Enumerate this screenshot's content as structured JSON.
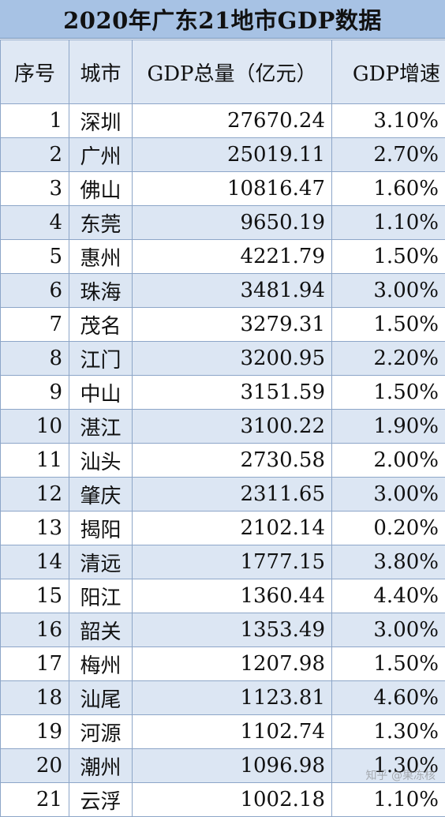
{
  "title": "2020年广东21地市GDP数据",
  "headers": {
    "rank": "序号",
    "city": "城市",
    "gdp": "GDP总量（亿元）",
    "growth": "GDP增速"
  },
  "rows": [
    {
      "rank": "1",
      "city": "深圳",
      "gdp": "27670.24",
      "growth": "3.10%"
    },
    {
      "rank": "2",
      "city": "广州",
      "gdp": "25019.11",
      "growth": "2.70%"
    },
    {
      "rank": "3",
      "city": "佛山",
      "gdp": "10816.47",
      "growth": "1.60%"
    },
    {
      "rank": "4",
      "city": "东莞",
      "gdp": "9650.19",
      "growth": "1.10%"
    },
    {
      "rank": "5",
      "city": "惠州",
      "gdp": "4221.79",
      "growth": "1.50%"
    },
    {
      "rank": "6",
      "city": "珠海",
      "gdp": "3481.94",
      "growth": "3.00%"
    },
    {
      "rank": "7",
      "city": "茂名",
      "gdp": "3279.31",
      "growth": "1.50%"
    },
    {
      "rank": "8",
      "city": "江门",
      "gdp": "3200.95",
      "growth": "2.20%"
    },
    {
      "rank": "9",
      "city": "中山",
      "gdp": "3151.59",
      "growth": "1.50%"
    },
    {
      "rank": "10",
      "city": "湛江",
      "gdp": "3100.22",
      "growth": "1.90%"
    },
    {
      "rank": "11",
      "city": "汕头",
      "gdp": "2730.58",
      "growth": "2.00%"
    },
    {
      "rank": "12",
      "city": "肇庆",
      "gdp": "2311.65",
      "growth": "3.00%"
    },
    {
      "rank": "13",
      "city": "揭阳",
      "gdp": "2102.14",
      "growth": "0.20%"
    },
    {
      "rank": "14",
      "city": "清远",
      "gdp": "1777.15",
      "growth": "3.80%"
    },
    {
      "rank": "15",
      "city": "阳江",
      "gdp": "1360.44",
      "growth": "4.40%"
    },
    {
      "rank": "16",
      "city": "韶关",
      "gdp": "1353.49",
      "growth": "3.00%"
    },
    {
      "rank": "17",
      "city": "梅州",
      "gdp": "1207.98",
      "growth": "1.50%"
    },
    {
      "rank": "18",
      "city": "汕尾",
      "gdp": "1123.81",
      "growth": "4.60%"
    },
    {
      "rank": "19",
      "city": "河源",
      "gdp": "1102.74",
      "growth": "1.30%"
    },
    {
      "rank": "20",
      "city": "潮州",
      "gdp": "1096.98",
      "growth": "1.30%"
    },
    {
      "rank": "21",
      "city": "云浮",
      "gdp": "1002.18",
      "growth": "1.10%"
    }
  ],
  "watermark": "知乎 @果冻核",
  "colors": {
    "title_bg": "#a7c2e4",
    "alt_row_bg": "#dce6f3",
    "border": "#8da6c8"
  }
}
